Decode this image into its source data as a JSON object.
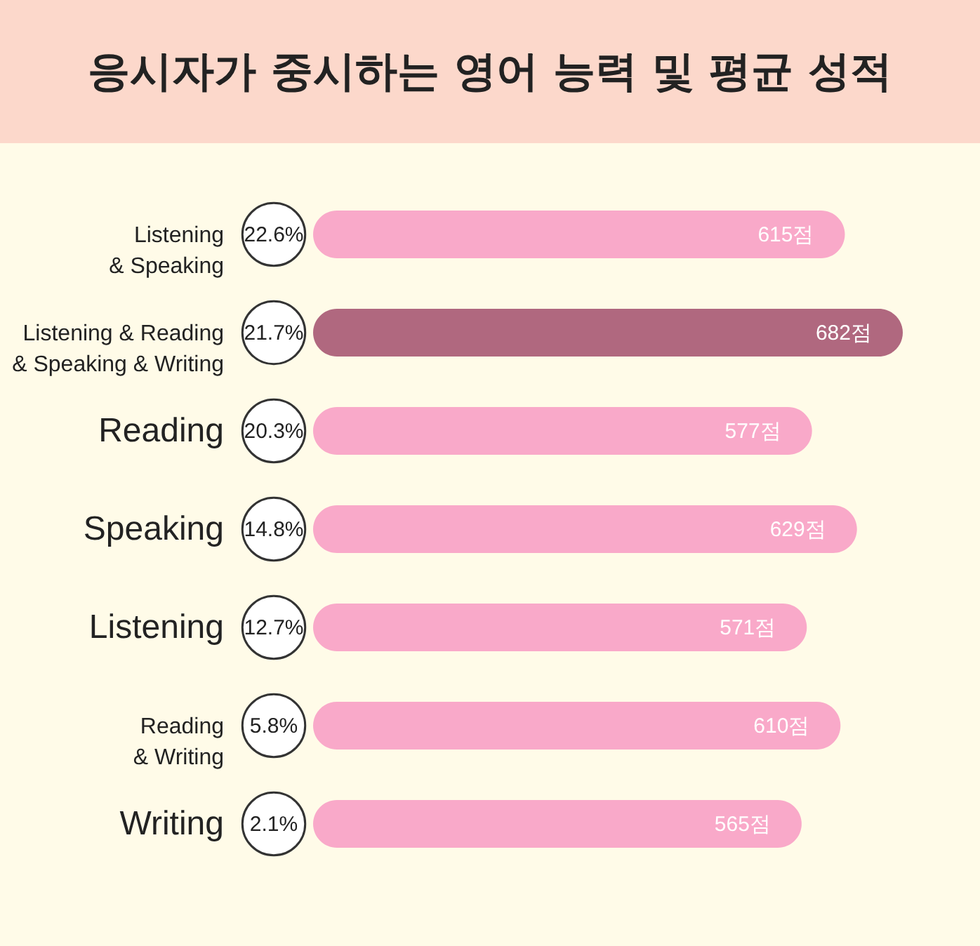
{
  "chart_data": [
    {
      "type": "other",
      "title": "응시자가 중시하는 영어 능력 및 평균 성적",
      "categories": [
        "Listening\n& Speaking",
        "Listening & Reading\n& Speaking & Writing",
        "Reading",
        "Speaking",
        "Listening",
        "Reading\n& Writing",
        "Writing"
      ],
      "values": [
        22.6,
        21.7,
        20.3,
        14.8,
        12.7,
        5.8,
        2.1
      ],
      "value_labels": [
        "22.6%",
        "21.7%",
        "20.3%",
        "14.8%",
        "12.7%",
        "5.8%",
        "2.1%"
      ]
    },
    {
      "type": "bar",
      "orientation": "horizontal",
      "values": [
        615,
        682,
        577,
        629,
        571,
        610,
        565
      ],
      "value_labels": [
        "615점",
        "682점",
        "577점",
        "629점",
        "571점",
        "610점",
        "565점"
      ],
      "colors": [
        "#f9a9c9",
        "#b0687f",
        "#f9a9c9",
        "#f9a9c9",
        "#f9a9c9",
        "#f9a9c9",
        "#f9a9c9"
      ]
    }
  ]
}
